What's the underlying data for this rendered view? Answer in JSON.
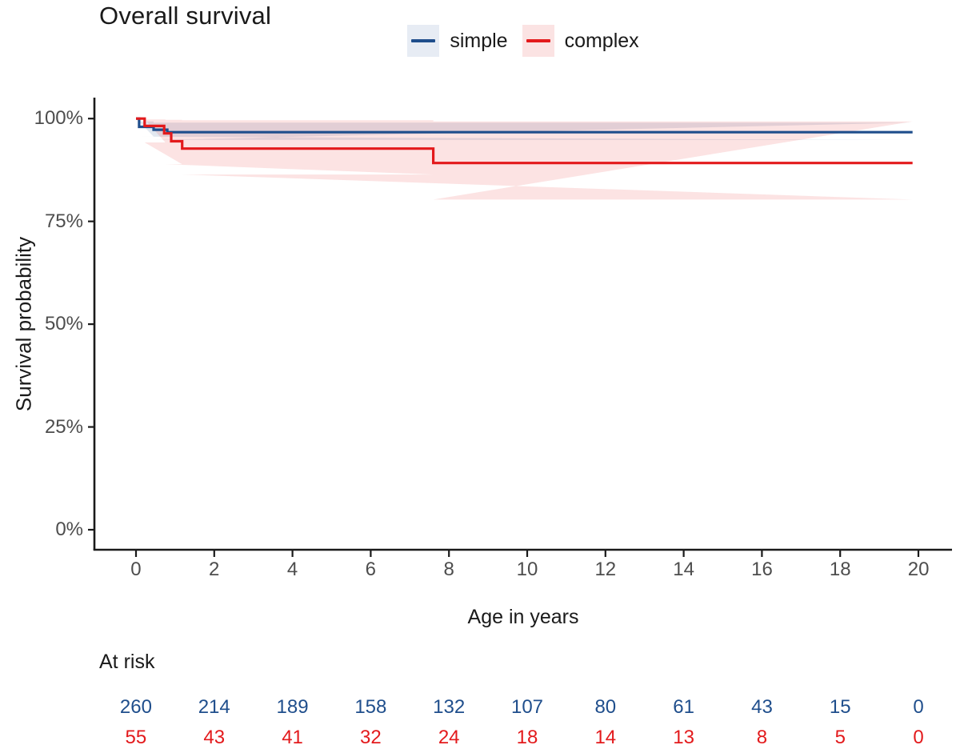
{
  "title": "Overall survival",
  "legend": {
    "items": [
      {
        "label": "simple",
        "line_color": "#1f4e8c",
        "key_fill": "#e7ecf4"
      },
      {
        "label": "complex",
        "line_color": "#e31a1c",
        "key_fill": "#fbe3e3"
      }
    ]
  },
  "axes": {
    "x_title": "Age in years",
    "y_title": "Survival probability",
    "x_ticks": [
      0,
      2,
      4,
      6,
      8,
      10,
      12,
      14,
      16,
      18,
      20
    ],
    "y_ticks": [
      {
        "value": 0,
        "label": "0%"
      },
      {
        "value": 25,
        "label": "25%"
      },
      {
        "value": 50,
        "label": "50%"
      },
      {
        "value": 75,
        "label": "75%"
      },
      {
        "value": 100,
        "label": "100%"
      }
    ],
    "axis_color": "#1a1a1a",
    "tick_text_color": "#4d4d4d"
  },
  "chart_data": {
    "type": "line",
    "subtype": "kaplan-meier-step",
    "title": "Overall survival",
    "xlabel": "Age in years",
    "ylabel": "Survival probability",
    "xlim": [
      0,
      20
    ],
    "ylim": [
      0,
      100
    ],
    "grid": false,
    "legend_position": "top-center",
    "series": [
      {
        "name": "simple",
        "color": "#1f4e8c",
        "band_color": "rgba(31,78,140,0.13)",
        "steps": [
          [
            0,
            100
          ],
          [
            0.08,
            98.0
          ],
          [
            0.45,
            97.3
          ],
          [
            0.8,
            96.7
          ]
        ],
        "end_x": 19.85,
        "band": [
          [
            0.08,
            0.45,
            99.3,
            95.6
          ],
          [
            0.45,
            19.85,
            99.0,
            94.8
          ]
        ]
      },
      {
        "name": "complex",
        "color": "#e31a1c",
        "band_color": "rgba(227,26,28,0.12)",
        "steps": [
          [
            0,
            100
          ],
          [
            0.22,
            98.2
          ],
          [
            0.72,
            96.4
          ],
          [
            0.9,
            94.5
          ],
          [
            1.18,
            92.7
          ],
          [
            7.6,
            89.2
          ]
        ],
        "end_x": 19.85,
        "band": [
          [
            0.22,
            0.75,
            99.8,
            94.2
          ],
          [
            0.75,
            1.18,
            99.7,
            88.9
          ],
          [
            1.18,
            7.6,
            99.6,
            86.4
          ],
          [
            7.6,
            19.85,
            99.3,
            80.3
          ]
        ]
      }
    ]
  },
  "risk_table": {
    "label": "At risk",
    "times": [
      0,
      2,
      4,
      6,
      8,
      10,
      12,
      14,
      16,
      18,
      20
    ],
    "rows": [
      {
        "name": "simple",
        "color": "#1f4e8c",
        "values": [
          260,
          214,
          189,
          158,
          132,
          107,
          80,
          61,
          43,
          15,
          0
        ]
      },
      {
        "name": "complex",
        "color": "#e31a1c",
        "values": [
          55,
          43,
          41,
          32,
          24,
          18,
          14,
          13,
          8,
          5,
          0
        ]
      }
    ]
  }
}
